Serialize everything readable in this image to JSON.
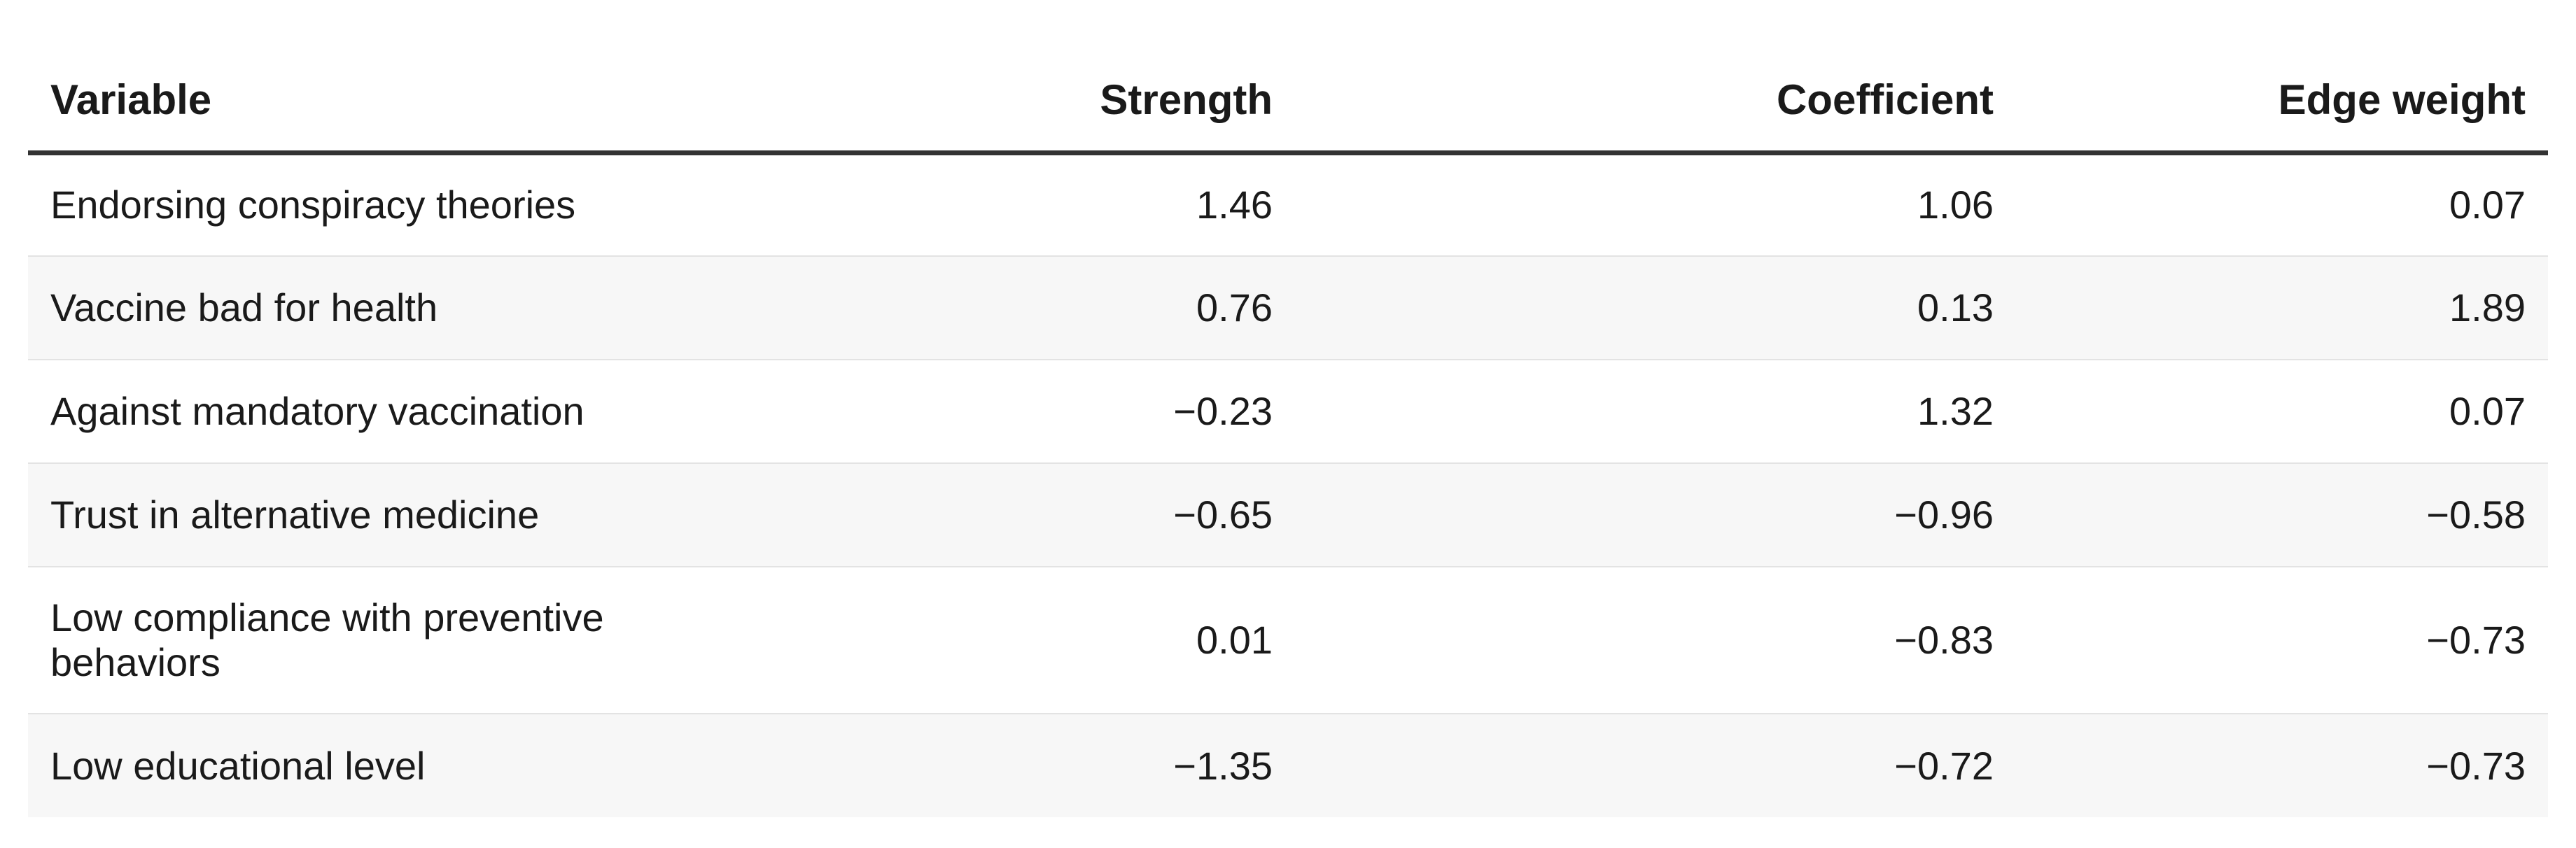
{
  "table": {
    "headers": {
      "variable": "Variable",
      "strength": "Strength",
      "coefficient": "Coefficient",
      "edge_weight": "Edge weight"
    },
    "rows": [
      {
        "variable": "Endorsing conspiracy theories",
        "strength": "1.46",
        "coefficient": "1.06",
        "edge_weight": "0.07"
      },
      {
        "variable": "Vaccine bad for health",
        "strength": "0.76",
        "coefficient": "0.13",
        "edge_weight": "1.89"
      },
      {
        "variable": "Against mandatory vaccination",
        "strength": "−0.23",
        "coefficient": "1.32",
        "edge_weight": "0.07"
      },
      {
        "variable": "Trust in alternative medicine",
        "strength": "−0.65",
        "coefficient": "−0.96",
        "edge_weight": "−0.58"
      },
      {
        "variable": "Low compliance with preventive behaviors",
        "strength": "0.01",
        "coefficient": "−0.83",
        "edge_weight": "−0.73"
      },
      {
        "variable": "Low educational level",
        "strength": "−1.35",
        "coefficient": "−0.72",
        "edge_weight": "−0.73"
      }
    ]
  }
}
